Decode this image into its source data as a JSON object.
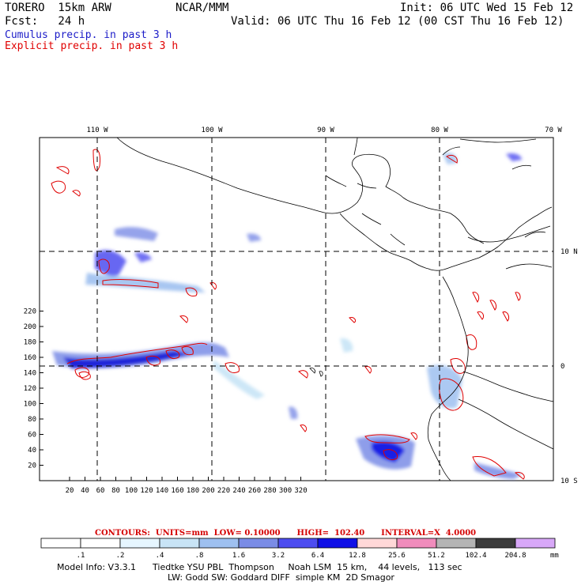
{
  "header": {
    "model": "TORERO  15km ARW",
    "org": "NCAR/MMM",
    "init": "Init: 06 UTC Wed 15 Feb 12",
    "fcst": "Fcst:   24 h",
    "valid": "Valid: 06 UTC Thu 16 Feb 12 (00 CST Thu 16 Feb 12)"
  },
  "legend": {
    "cumulus": "Cumulus precip. in past 3 h",
    "explicit": "Explicit precip. in past 3 h",
    "cumulus_color": "#1c1cc8",
    "explicit_color": "#e00000"
  },
  "map": {
    "lon_labels": [
      "110 W",
      "100 W",
      "90 W",
      "80 W",
      "70 W"
    ],
    "lat_labels": [
      "10 N",
      "0",
      "10 S"
    ],
    "y_ticks": [
      "20",
      "40",
      "60",
      "80",
      "100",
      "120",
      "140",
      "160",
      "180",
      "200",
      "220"
    ],
    "x_ticks": [
      "20",
      "40",
      "60",
      "80",
      "100",
      "120",
      "140",
      "160",
      "180",
      "200",
      "220",
      "240",
      "260",
      "280",
      "300",
      "320"
    ]
  },
  "contours": {
    "label": "CONTOURS:  UNITS=mm  LOW= 0.10000      HIGH=  102.40      INTERVAL=X  4.0000"
  },
  "colorbar": {
    "labels": [
      ".1",
      ".2",
      ".4",
      ".8",
      "1.6",
      "3.2",
      "6.4",
      "12.8",
      "25.6",
      "51.2",
      "102.4",
      "204.8"
    ],
    "unit": "mm",
    "colors": [
      "#ffffff",
      "#ffffff",
      "#e6f6ff",
      "#c8e4f6",
      "#9ec0f0",
      "#7a8ce6",
      "#4d4df0",
      "#1010e6",
      "#ffd8d8",
      "#f08cbc",
      "#b4b4b4",
      "#3c3c3c",
      "#d8a8f8"
    ]
  },
  "footer": {
    "line1": "Model Info: V3.3.1      Tiedtke YSU PBL  Thompson     Noah LSM  15 km,    44 levels,   113 sec",
    "line2": "LW: Godd SW: Goddard DIFF  simple KM  2D Smagor"
  }
}
